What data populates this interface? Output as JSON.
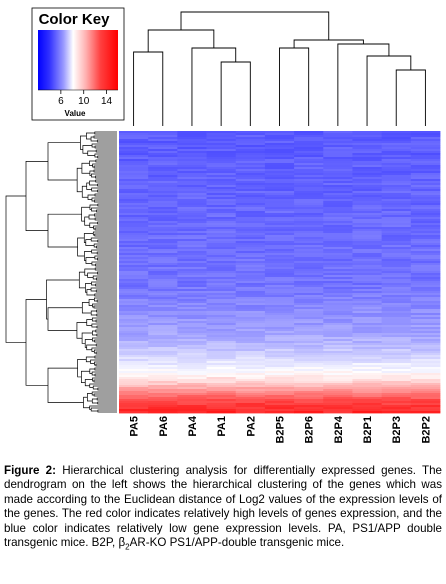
{
  "chart_data": {
    "type": "heatmap",
    "columns": [
      "PA5",
      "PA6",
      "PA4",
      "PA1",
      "PA2",
      "B2P5",
      "B2P6",
      "B2P4",
      "B2P1",
      "B2P3",
      "B2P2"
    ],
    "column_dendrogram": {
      "groups": [
        [
          "PA5",
          "PA6",
          "PA4",
          "PA1",
          "PA2"
        ],
        [
          "B2P5",
          "B2P6",
          "B2P4",
          "B2P1",
          "B2P3",
          "B2P2"
        ]
      ]
    },
    "row_dendrogram": true,
    "color_key": {
      "title": "Color Key",
      "xlabel": "Value",
      "ticks": [
        6,
        10,
        14
      ],
      "range": [
        2,
        16
      ],
      "colors": [
        "#0000ff",
        "#ffffff",
        "#ff0000"
      ]
    },
    "value_profile": {
      "note_free": true,
      "fractions": [
        0,
        0.55,
        0.72,
        0.8,
        0.855,
        0.885,
        0.905,
        0.93,
        0.955,
        1
      ],
      "values": [
        4.5,
        5.2,
        6.5,
        7.8,
        9.0,
        10.0,
        11.0,
        12.5,
        14.0,
        15.0
      ]
    }
  },
  "caption": {
    "label": "Figure 2:",
    "text_1": " Hierarchical clustering analysis for differentially expressed genes. The dendrogram on the left shows the hierarchical clustering of the genes which was made according to the Euclidean distance of Log2 values of the expression levels of the genes. The red color indicates relatively high levels of genes expression, and the blue color indicates relatively low gene expression levels. PA, PS1/APP double transgenic mice. B2P, β",
    "sub": "2",
    "text_2": "AR-KO PS1/APP-double transgenic mice."
  }
}
